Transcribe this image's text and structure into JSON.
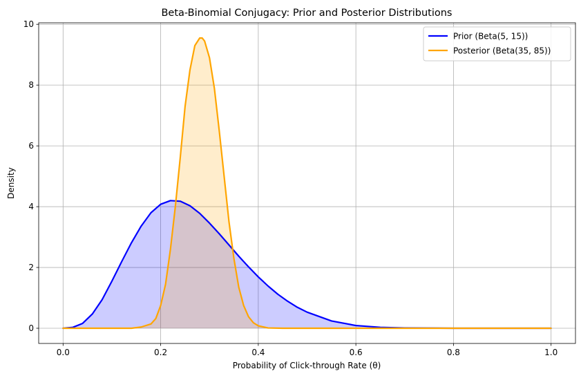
{
  "chart_data": {
    "type": "line",
    "title": "Beta-Binomial Conjugacy: Prior and Posterior Distributions",
    "xlabel": "Probability of Click-through Rate (θ)",
    "ylabel": "Density",
    "xlim": [
      -0.05,
      1.05
    ],
    "ylim": [
      -0.5,
      10.05
    ],
    "xticks": [
      0.0,
      0.2,
      0.4,
      0.6,
      0.8,
      1.0
    ],
    "xtick_labels": [
      "0.0",
      "0.2",
      "0.4",
      "0.6",
      "0.8",
      "1.0"
    ],
    "yticks": [
      0,
      2,
      4,
      6,
      8,
      10
    ],
    "ytick_labels": [
      "0",
      "2",
      "4",
      "6",
      "8",
      "10"
    ],
    "grid": true,
    "legend_position": "top-right",
    "series": [
      {
        "name": "Prior (Beta(5, 15))",
        "color": "#0000ff",
        "fill_color": "#0000ff",
        "fill_opacity": 0.2,
        "x": [
          0.0,
          0.02,
          0.04,
          0.06,
          0.08,
          0.1,
          0.12,
          0.14,
          0.16,
          0.18,
          0.2,
          0.22,
          0.24,
          0.26,
          0.28,
          0.3,
          0.32,
          0.34,
          0.36,
          0.38,
          0.4,
          0.42,
          0.44,
          0.46,
          0.48,
          0.5,
          0.55,
          0.6,
          0.65,
          0.7,
          0.8,
          0.9,
          1.0
        ],
        "y": [
          0.0,
          0.03,
          0.16,
          0.47,
          0.94,
          1.55,
          2.19,
          2.81,
          3.36,
          3.8,
          4.08,
          4.2,
          4.18,
          4.03,
          3.78,
          3.46,
          3.11,
          2.74,
          2.37,
          2.02,
          1.69,
          1.39,
          1.12,
          0.89,
          0.69,
          0.53,
          0.24,
          0.09,
          0.03,
          0.01,
          0.0,
          0.0,
          0.0
        ]
      },
      {
        "name": "Posterior (Beta(35, 85))",
        "color": "#ffa500",
        "fill_color": "#ffa500",
        "fill_opacity": 0.2,
        "x": [
          0.0,
          0.1,
          0.14,
          0.16,
          0.18,
          0.19,
          0.2,
          0.21,
          0.22,
          0.23,
          0.24,
          0.25,
          0.26,
          0.27,
          0.28,
          0.285,
          0.29,
          0.3,
          0.31,
          0.32,
          0.33,
          0.34,
          0.35,
          0.36,
          0.37,
          0.38,
          0.39,
          0.4,
          0.42,
          0.45,
          0.5,
          0.6,
          1.0
        ],
        "y": [
          0.0,
          0.0,
          0.0,
          0.04,
          0.14,
          0.32,
          0.75,
          1.45,
          2.6,
          4.0,
          5.6,
          7.3,
          8.5,
          9.3,
          9.55,
          9.55,
          9.45,
          8.9,
          7.9,
          6.5,
          5.0,
          3.5,
          2.3,
          1.35,
          0.75,
          0.38,
          0.18,
          0.08,
          0.01,
          0.0,
          0.0,
          0.0,
          0.0
        ]
      }
    ]
  }
}
